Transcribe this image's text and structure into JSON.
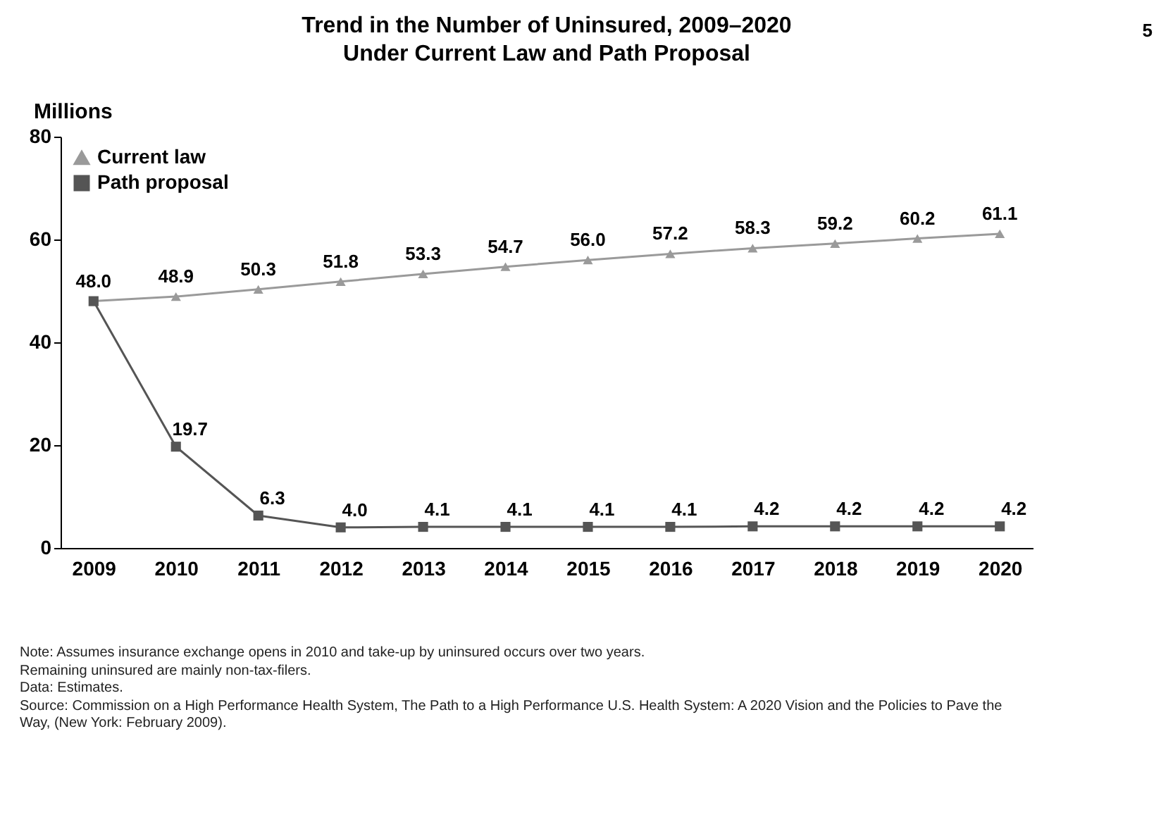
{
  "chart_data": {
    "type": "line",
    "title": "Trend in the Number of Uninsured, 2009–2020",
    "subtitle": "Under Current Law and Path Proposal",
    "ylabel": "Millions",
    "categories": [
      "2009",
      "2010",
      "2011",
      "2012",
      "2013",
      "2014",
      "2015",
      "2016",
      "2017",
      "2018",
      "2019",
      "2020"
    ],
    "series": [
      {
        "name": "Current law",
        "color": "#9a9a9a",
        "marker": "triangle",
        "values": [
          48.0,
          48.9,
          50.3,
          51.8,
          53.3,
          54.7,
          56.0,
          57.2,
          58.3,
          59.2,
          60.2,
          61.1
        ],
        "value_labels": [
          "48.0",
          "48.9",
          "50.3",
          "51.8",
          "53.3",
          "54.7",
          "56.0",
          "57.2",
          "58.3",
          "59.2",
          "60.2",
          "61.1"
        ]
      },
      {
        "name": "Path proposal",
        "color": "#555555",
        "marker": "square",
        "values": [
          48.0,
          19.7,
          6.3,
          4.0,
          4.1,
          4.1,
          4.1,
          4.1,
          4.2,
          4.2,
          4.2,
          4.2
        ],
        "value_labels": [
          null,
          "19.7",
          "6.3",
          "4.0",
          "4.1",
          "4.1",
          "4.1",
          "4.1",
          "4.2",
          "4.2",
          "4.2",
          "4.2"
        ]
      }
    ],
    "ylim": [
      0,
      80
    ],
    "yticks": [
      0,
      20,
      40,
      60,
      80
    ],
    "legend": "top left",
    "grid": false,
    "annotations": [
      "5",
      "Note: Assumes insurance exchange opens in 2010 and take-up by uninsured occurs over two years.",
      "Remaining uninsured are mainly non-tax-filers.",
      "Data: Estimates.",
      "Source: Commission on a High Performance Health System, The Path to a High Performance U.S. Health System: A 2020 Vision and the Policies to Pave the Way, (New York: February 2009)."
    ]
  }
}
